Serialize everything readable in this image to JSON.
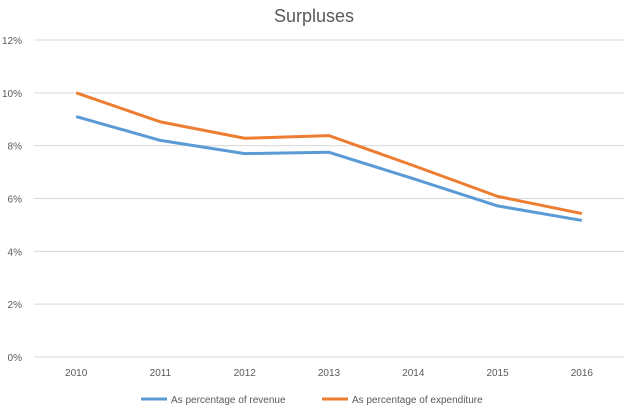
{
  "chart_data": {
    "type": "line",
    "title": "Surpluses",
    "categories": [
      "2010",
      "2011",
      "2012",
      "2013",
      "2014",
      "2015",
      "2016"
    ],
    "series": [
      {
        "name": "As percentage of revenue",
        "color": "#5B9BD5",
        "values": [
          9.1,
          8.2,
          7.7,
          7.75,
          6.75,
          5.72,
          5.17
        ]
      },
      {
        "name": "As percentage of expenditure",
        "color": "#ED7D31",
        "values": [
          10.0,
          8.9,
          8.28,
          8.38,
          7.25,
          6.08,
          5.43
        ]
      }
    ],
    "yticks": [
      "0%",
      "2%",
      "4%",
      "6%",
      "8%",
      "10%",
      "12%"
    ],
    "ylim": [
      0,
      12
    ],
    "grid": true,
    "legend": "bottom"
  }
}
